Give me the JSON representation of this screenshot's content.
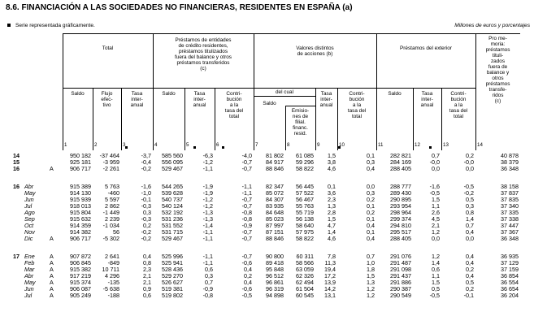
{
  "title": "8.6. FINANCIACIÓN A LAS SOCIEDADES NO FINANCIERAS, RESIDENTES EN ESPAÑA (a)",
  "note": "Serie representada gráficamente.",
  "units": "Millones de euros y porcentajes",
  "headers": {
    "total": "Total",
    "prestamos_entidades": [
      "Préstamos de entidades",
      "de crédito residentes,",
      "préstamos titulizados",
      "fuera del balance y otros",
      "préstamos transferidos",
      "(c)"
    ],
    "valores": [
      "Valores distintos",
      "de acciones (b)"
    ],
    "prestamos_exterior": "Préstamos del exterior",
    "pro_memoria": [
      "Pro me-",
      "moria:",
      "préstamos",
      "tituli-",
      "zados",
      "fuera de",
      "balance y",
      "otros",
      "préstamos",
      "transfe-",
      "ridos",
      "(c)"
    ],
    "del_cual": "del cual",
    "saldo": "Saldo",
    "flujo": [
      "Flujo",
      "efec-",
      "tivo"
    ],
    "tasa": [
      "Tasa",
      "inter-",
      "anual"
    ],
    "contrib": [
      "Contri-",
      "bución",
      "a la",
      "tasa del",
      "total"
    ],
    "emisiones": [
      "Emisio-",
      "nes de",
      "filial.",
      "financ.",
      "resid."
    ],
    "col_numbers": [
      "1",
      "2",
      "3",
      "4",
      "5",
      "6",
      "7",
      "8",
      "9",
      "10",
      "11",
      "12",
      "13",
      "14"
    ]
  },
  "rows": [
    {
      "y": "14",
      "m": "",
      "f": "",
      "v": [
        "950 182",
        "-37 464",
        "-3,7",
        "585 560",
        "-6,3",
        "-4,0",
        "81 802",
        "61 085",
        "1,5",
        "0,1",
        "282 821",
        "0,7",
        "0,2",
        "40 878"
      ]
    },
    {
      "y": "15",
      "m": "",
      "f": "",
      "v": [
        "925 181",
        "-3 959",
        "-0,4",
        "556 095",
        "-1,2",
        "-0,7",
        "84 917",
        "59 296",
        "3,8",
        "0,3",
        "284 169",
        "-0,0",
        "-0,0",
        "38 379"
      ]
    },
    {
      "y": "16",
      "m": "",
      "f": "A",
      "v": [
        "906 717",
        "-2 261",
        "-0,2",
        "529 467",
        "-1,1",
        "-0,7",
        "88 846",
        "58 822",
        "4,6",
        "0,4",
        "288 405",
        "0,0",
        "0,0",
        "36 348"
      ]
    },
    {
      "y": "16",
      "m": "Abr",
      "f": "",
      "v": [
        "915 389",
        "5 763",
        "-1,6",
        "544 265",
        "-1,9",
        "-1,1",
        "82 347",
        "56 445",
        "0,1",
        "0,0",
        "288 777",
        "-1,6",
        "-0,5",
        "38 158"
      ]
    },
    {
      "y": "",
      "m": "May",
      "f": "",
      "v": [
        "914 130",
        "-460",
        "-1,0",
        "539 628",
        "-1,9",
        "-1,1",
        "85 072",
        "57 522",
        "3,6",
        "0,3",
        "289 430",
        "-0,5",
        "-0,2",
        "37 837"
      ]
    },
    {
      "y": "",
      "m": "Jun",
      "f": "",
      "v": [
        "915 939",
        "5 597",
        "-0,1",
        "540 737",
        "-1,2",
        "-0,7",
        "84 307",
        "56 467",
        "2,3",
        "0,2",
        "290 895",
        "1,5",
        "0,5",
        "37 835"
      ]
    },
    {
      "y": "",
      "m": "Jul",
      "f": "",
      "v": [
        "918 013",
        "2 862",
        "-0,3",
        "540 124",
        "-1,2",
        "-0,7",
        "83 935",
        "55 763",
        "1,3",
        "0,1",
        "293 954",
        "1,1",
        "0,3",
        "37 340"
      ]
    },
    {
      "y": "",
      "m": "Ago",
      "f": "",
      "v": [
        "915 804",
        "-1 449",
        "0,3",
        "532 192",
        "-1,3",
        "-0,8",
        "84 648",
        "55 719",
        "2,8",
        "0,2",
        "298 964",
        "2,6",
        "0,8",
        "37 335"
      ]
    },
    {
      "y": "",
      "m": "Sep",
      "f": "",
      "v": [
        "915 632",
        "2 239",
        "-0,3",
        "531 236",
        "-1,3",
        "-0,8",
        "85 023",
        "56 138",
        "1,5",
        "0,1",
        "299 374",
        "4,5",
        "1,4",
        "37 338"
      ]
    },
    {
      "y": "",
      "m": "Oct",
      "f": "",
      "v": [
        "914 359",
        "-1 034",
        "0,2",
        "531 552",
        "-1,4",
        "-0,9",
        "87 997",
        "58 640",
        "4,7",
        "0,4",
        "294 810",
        "2,1",
        "0,7",
        "37 447"
      ]
    },
    {
      "y": "",
      "m": "Nov",
      "f": "",
      "v": [
        "914 382",
        "56",
        "-0,2",
        "531 715",
        "-1,1",
        "-0,7",
        "87 151",
        "57 975",
        "1,4",
        "0,1",
        "295 517",
        "1,2",
        "0,4",
        "37 367"
      ]
    },
    {
      "y": "",
      "m": "Dic",
      "f": "A",
      "v": [
        "906 717",
        "-5 302",
        "-0,2",
        "529 467",
        "-1,1",
        "-0,7",
        "88 846",
        "58 822",
        "4,6",
        "0,4",
        "288 405",
        "0,0",
        "0,0",
        "36 348"
      ]
    },
    {
      "y": "17",
      "m": "Ene",
      "f": "A",
      "v": [
        "907 872",
        "2 641",
        "0,4",
        "525 996",
        "-1,1",
        "-0,7",
        "90 800",
        "60 311",
        "7,8",
        "0,7",
        "291 076",
        "1,2",
        "0,4",
        "36 935"
      ]
    },
    {
      "y": "",
      "m": "Feb",
      "f": "A",
      "v": [
        "906 845",
        "-849",
        "0,8",
        "525 941",
        "-1,1",
        "-0,6",
        "89 418",
        "58 566",
        "11,3",
        "1,0",
        "291 487",
        "1,4",
        "0,4",
        "37 129"
      ]
    },
    {
      "y": "",
      "m": "Mar",
      "f": "A",
      "v": [
        "915 382",
        "10 711",
        "2,3",
        "528 436",
        "0,6",
        "0,4",
        "95 848",
        "63 059",
        "19,4",
        "1,8",
        "291 098",
        "0,6",
        "0,2",
        "37 159"
      ]
    },
    {
      "y": "",
      "m": "Abr",
      "f": "A",
      "v": [
        "917 219",
        "4 296",
        "2,1",
        "529 270",
        "0,3",
        "0,2",
        "96 512",
        "62 326",
        "17,2",
        "1,5",
        "291 437",
        "1,1",
        "0,4",
        "36 854"
      ]
    },
    {
      "y": "",
      "m": "May",
      "f": "A",
      "v": [
        "915 374",
        "-135",
        "2,1",
        "526 627",
        "0,7",
        "0,4",
        "96 861",
        "62 494",
        "13,9",
        "1,3",
        "291 886",
        "1,5",
        "0,5",
        "36 554"
      ]
    },
    {
      "y": "",
      "m": "Jun",
      "f": "A",
      "v": [
        "906 087",
        "-5 638",
        "0,9",
        "519 381",
        "-0,9",
        "-0,6",
        "96 319",
        "61 504",
        "14,2",
        "1,2",
        "290 387",
        "0,5",
        "0,2",
        "36 654"
      ]
    },
    {
      "y": "",
      "m": "Jul",
      "f": "A",
      "v": [
        "905 249",
        "-188",
        "0,6",
        "519 802",
        "-0,8",
        "-0,5",
        "94 898",
        "60 545",
        "13,1",
        "1,2",
        "290 549",
        "-0,5",
        "-0,1",
        "36 204"
      ]
    }
  ]
}
